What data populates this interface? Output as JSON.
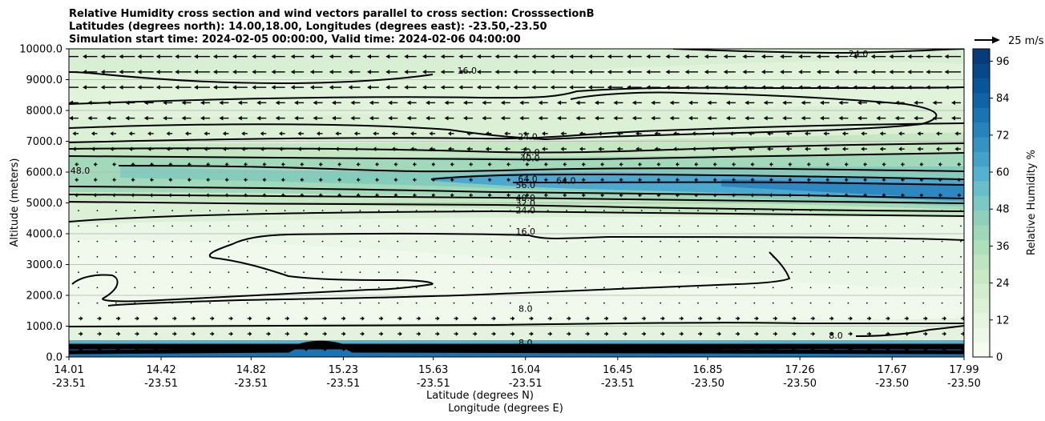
{
  "chart_data": {
    "type": "contour",
    "title_lines": [
      "Relative Humidity cross section and wind vectors parallel to cross section: CrosssectionB",
      "Latitudes (degrees north): 14.00,18.00, Longitudes (degrees east): -23.50,-23.50",
      "Simulation start time: 2024-02-05 00:00:00, Valid time: 2024-02-06 04:00:00"
    ],
    "ylabel": "Altitude (meters)",
    "xlabel_1": "Latitude (degrees N)",
    "xlabel_2": "Longitude (degrees E)",
    "ylim": [
      0,
      10000
    ],
    "xlim": [
      14.01,
      17.99
    ],
    "y_ticks": [
      "0.0",
      "1000.0",
      "2000.0",
      "3000.0",
      "4000.0",
      "5000.0",
      "6000.0",
      "7000.0",
      "8000.0",
      "9000.0",
      "10000.0"
    ],
    "y_tick_values": [
      0,
      1000,
      2000,
      3000,
      4000,
      5000,
      6000,
      7000,
      8000,
      9000,
      10000
    ],
    "x_ticks": [
      {
        "lat": "14.01",
        "lon": "-23.51",
        "v": 14.01
      },
      {
        "lat": "14.42",
        "lon": "-23.51",
        "v": 14.42
      },
      {
        "lat": "14.82",
        "lon": "-23.51",
        "v": 14.82
      },
      {
        "lat": "15.23",
        "lon": "-23.51",
        "v": 15.23
      },
      {
        "lat": "15.63",
        "lon": "-23.51",
        "v": 15.63
      },
      {
        "lat": "16.04",
        "lon": "-23.51",
        "v": 16.04
      },
      {
        "lat": "16.45",
        "lon": "-23.51",
        "v": 16.45
      },
      {
        "lat": "16.85",
        "lon": "-23.50",
        "v": 16.85
      },
      {
        "lat": "17.26",
        "lon": "-23.50",
        "v": 17.26
      },
      {
        "lat": "17.67",
        "lon": "-23.50",
        "v": 17.67
      },
      {
        "lat": "17.99",
        "lon": "-23.50",
        "v": 17.99
      }
    ],
    "colorbar": {
      "label": "Relative Humidity %",
      "ticks": [
        "0",
        "12",
        "24",
        "36",
        "48",
        "60",
        "72",
        "84",
        "96"
      ],
      "tick_values": [
        0,
        12,
        24,
        36,
        48,
        60,
        72,
        84,
        96
      ],
      "range": [
        0,
        100
      ],
      "colors": [
        "#f7fcf0",
        "#eef8e8",
        "#e5f5e0",
        "#dcf1d6",
        "#d3eecd",
        "#c8e9c4",
        "#bde5bf",
        "#aedfbb",
        "#9fd8b8",
        "#8ed0bb",
        "#7bc8c4",
        "#68bfca",
        "#56b1d0",
        "#44a2ca",
        "#3592c2",
        "#2683bb",
        "#1a73b2",
        "#0f63a6",
        "#08559a",
        "#08478a",
        "#083b7a"
      ]
    },
    "quiver_key": {
      "label": "25 m/s",
      "speed": 25
    },
    "contour_levels": [
      8.0,
      16.0,
      24.0,
      32.0,
      40.0,
      48.0,
      56.0,
      64.0
    ],
    "contour_labels": [
      {
        "text": "24.0",
        "x": 17.52,
        "y": 9850
      },
      {
        "text": "16.0",
        "x": 15.78,
        "y": 9300
      },
      {
        "text": "24.0",
        "x": 16.05,
        "y": 7150
      },
      {
        "text": "32.0",
        "x": 16.06,
        "y": 6650
      },
      {
        "text": "40.0",
        "x": 16.06,
        "y": 6450
      },
      {
        "text": "48.0",
        "x": 14.06,
        "y": 6050
      },
      {
        "text": "64.0",
        "x": 16.05,
        "y": 5780
      },
      {
        "text": "64.0",
        "x": 16.22,
        "y": 5730
      },
      {
        "text": "56.0",
        "x": 16.04,
        "y": 5580
      },
      {
        "text": "40.0",
        "x": 16.04,
        "y": 5170
      },
      {
        "text": "32.0",
        "x": 16.04,
        "y": 5000
      },
      {
        "text": "24.0",
        "x": 16.04,
        "y": 4760
      },
      {
        "text": "16.0",
        "x": 16.04,
        "y": 4080
      },
      {
        "text": "8.0",
        "x": 16.04,
        "y": 1570
      },
      {
        "text": "8.0",
        "x": 16.04,
        "y": 470
      },
      {
        "text": "8.0",
        "x": 17.42,
        "y": 700
      }
    ]
  }
}
